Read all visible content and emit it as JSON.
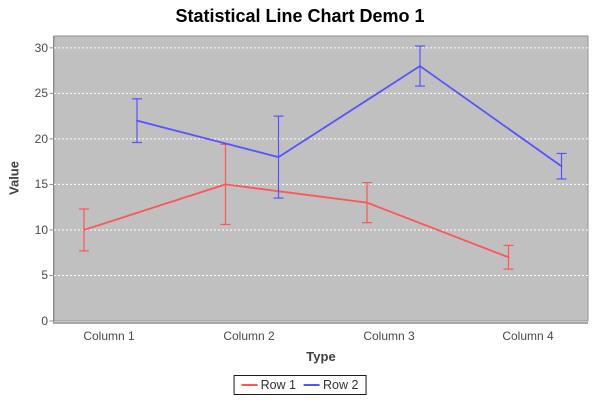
{
  "chart_data": {
    "type": "line",
    "variant": "statistical-line-chart-with-error-bars",
    "title": "Statistical Line Chart Demo 1",
    "xlabel": "Type",
    "ylabel": "Value",
    "categories": [
      "Column 1",
      "Column 2",
      "Column 3",
      "Column 4"
    ],
    "series": [
      {
        "name": "Row 1",
        "color": "#FF5555",
        "values": [
          10,
          15,
          13,
          7
        ],
        "errors": [
          2.3,
          4.4,
          2.2,
          1.3
        ]
      },
      {
        "name": "Row 2",
        "color": "#5555FF",
        "values": [
          22,
          18,
          28,
          17
        ],
        "errors": [
          2.4,
          4.5,
          2.2,
          1.4
        ]
      }
    ],
    "y_ticks": [
      0,
      5,
      10,
      15,
      20,
      25,
      30
    ],
    "ylim": [
      0,
      31.3
    ],
    "grid": "horizontal-dashed-white",
    "legend_position": "bottom",
    "series_offset_within_category": true
  },
  "colors": {
    "plot_background": "#C0C0C0",
    "gridline": "#FFFFFF",
    "axis_line": "#8A8A8A",
    "plot_outline": "#929292",
    "title_text": "#000000",
    "axis_label_text": "#404040",
    "tick_label_text": "#4A4A4A",
    "legend_border": "#1A1A1A",
    "legend_text": "#333333"
  }
}
